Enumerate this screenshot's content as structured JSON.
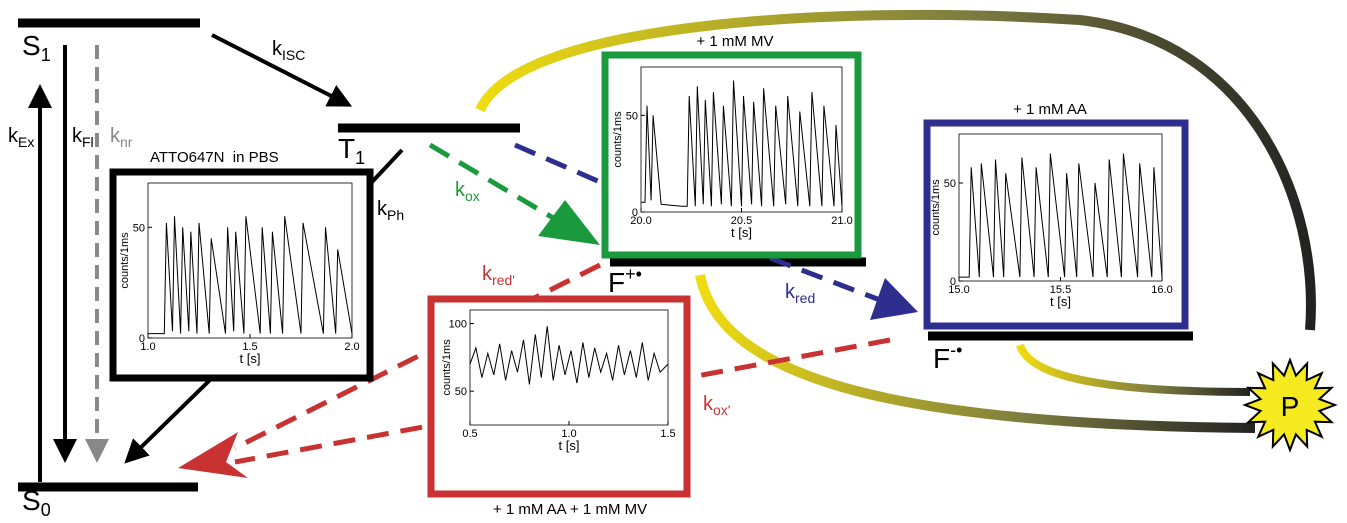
{
  "diagram": {
    "levels": {
      "s1": {
        "main": "S",
        "sub": "1"
      },
      "s0": {
        "main": "S",
        "sub": "0"
      },
      "t1": {
        "main": "T",
        "sub": "1"
      },
      "fplus": {
        "main": "F",
        "sup": "+•"
      },
      "fminus": {
        "main": "F",
        "sup": "-•"
      }
    },
    "rates": {
      "kex": {
        "main": "k",
        "sub": "Ex"
      },
      "kfl": {
        "main": "k",
        "sub": "Fl"
      },
      "knr": {
        "main": "k",
        "sub": "nr"
      },
      "kisc": {
        "main": "k",
        "sub": "ISC"
      },
      "kph": {
        "main": "k",
        "sub": "Ph"
      },
      "kox": {
        "main": "k",
        "sub": "ox"
      },
      "kred_prime": {
        "main": "k",
        "sub": "red'"
      },
      "kred": {
        "main": "k",
        "sub": "red"
      },
      "kox_prime": {
        "main": "k",
        "sub": "ox'"
      }
    },
    "p": "P"
  },
  "chart_data": [
    {
      "type": "line",
      "title": "ATTO647N  in PBS",
      "xlabel": "t [s]",
      "ylabel": "counts/1ms",
      "color": "#000000",
      "frame_color": "#000000",
      "xlim": [
        1.0,
        2.0
      ],
      "ylim": [
        0,
        70
      ],
      "xticks": [
        {
          "value": 1.0,
          "label": "1.0"
        },
        1.5,
        {
          "value": 2.0,
          "label": "2.0"
        }
      ],
      "yticks": [
        0,
        50
      ],
      "x": [
        1.0,
        1.08,
        1.09,
        1.12,
        1.13,
        1.16,
        1.17,
        1.2,
        1.21,
        1.24,
        1.25,
        1.3,
        1.31,
        1.38,
        1.39,
        1.42,
        1.43,
        1.47,
        1.48,
        1.55,
        1.56,
        1.6,
        1.61,
        1.66,
        1.67,
        1.75,
        1.76,
        1.86,
        1.87,
        1.92,
        1.93,
        2.0
      ],
      "values": [
        2,
        2,
        52,
        3,
        55,
        2,
        50,
        3,
        48,
        2,
        52,
        2,
        45,
        2,
        50,
        3,
        48,
        2,
        55,
        2,
        50,
        2,
        48,
        2,
        55,
        2,
        52,
        2,
        50,
        2,
        40,
        2
      ]
    },
    {
      "type": "line",
      "title": "+ 1 mM MV",
      "xlabel": "t [s]",
      "ylabel": "counts/1ms",
      "color": "#000000",
      "frame_color": "#1a9a3c",
      "xlim": [
        20.0,
        21.0
      ],
      "ylim": [
        0,
        75
      ],
      "xticks": [
        {
          "value": 20.0,
          "label": "20.0"
        },
        20.5,
        {
          "value": 21.0,
          "label": "21.0"
        }
      ],
      "yticks": [
        0,
        50
      ],
      "x": [
        20.0,
        20.02,
        20.03,
        20.05,
        20.06,
        20.1,
        20.2,
        20.23,
        20.24,
        20.27,
        20.28,
        20.31,
        20.32,
        20.35,
        20.36,
        20.4,
        20.41,
        20.45,
        20.46,
        20.5,
        20.51,
        20.55,
        20.56,
        20.6,
        20.61,
        20.66,
        20.67,
        20.72,
        20.73,
        20.78,
        20.79,
        20.84,
        20.85,
        20.9,
        20.91,
        20.96,
        20.97,
        21.0
      ],
      "values": [
        5,
        5,
        55,
        6,
        50,
        4,
        3,
        3,
        60,
        3,
        65,
        4,
        58,
        3,
        62,
        4,
        55,
        3,
        68,
        3,
        60,
        4,
        57,
        3,
        64,
        3,
        55,
        4,
        60,
        3,
        52,
        3,
        62,
        3,
        55,
        3,
        45,
        3
      ]
    },
    {
      "type": "line",
      "title": "+ 1 mM AA",
      "xlabel": "t [s]",
      "ylabel": "counts/1ms",
      "color": "#000000",
      "frame_color": "#2e2e8f",
      "xlim": [
        15.0,
        16.0
      ],
      "ylim": [
        0,
        75
      ],
      "xticks": [
        {
          "value": 15.0,
          "label": "15.0"
        },
        15.5,
        {
          "value": 16.0,
          "label": "16.0"
        }
      ],
      "yticks": [
        0,
        50
      ],
      "x": [
        15.0,
        15.05,
        15.06,
        15.1,
        15.11,
        15.17,
        15.18,
        15.22,
        15.23,
        15.3,
        15.31,
        15.37,
        15.38,
        15.44,
        15.45,
        15.52,
        15.53,
        15.58,
        15.59,
        15.66,
        15.67,
        15.73,
        15.74,
        15.8,
        15.81,
        15.88,
        15.89,
        15.95,
        15.96,
        16.0
      ],
      "values": [
        2,
        2,
        58,
        2,
        60,
        2,
        62,
        2,
        55,
        2,
        63,
        2,
        58,
        2,
        65,
        2,
        55,
        2,
        60,
        2,
        50,
        2,
        62,
        2,
        65,
        2,
        60,
        2,
        58,
        2
      ]
    },
    {
      "type": "line",
      "title": "+ 1 mM AA + 1 mM MV",
      "xlabel": "t [s]",
      "ylabel": "counts/1ms",
      "color": "#000000",
      "frame_color": "#c83232",
      "xlim": [
        0.5,
        1.5
      ],
      "ylim": [
        25,
        110
      ],
      "xticks": [
        0.5,
        {
          "value": 1.0,
          "label": "1.0"
        },
        1.5
      ],
      "yticks": [
        50,
        100
      ],
      "x": [
        0.5,
        0.53,
        0.56,
        0.59,
        0.62,
        0.65,
        0.68,
        0.71,
        0.74,
        0.77,
        0.8,
        0.83,
        0.86,
        0.89,
        0.92,
        0.95,
        0.98,
        1.01,
        1.04,
        1.07,
        1.1,
        1.13,
        1.16,
        1.19,
        1.22,
        1.25,
        1.28,
        1.31,
        1.34,
        1.37,
        1.4,
        1.43,
        1.46,
        1.5
      ],
      "values": [
        70,
        82,
        60,
        78,
        62,
        85,
        58,
        80,
        64,
        88,
        55,
        92,
        60,
        98,
        58,
        84,
        62,
        80,
        56,
        86,
        60,
        82,
        64,
        78,
        58,
        84,
        62,
        80,
        60,
        86,
        58,
        78,
        64,
        70
      ]
    }
  ]
}
